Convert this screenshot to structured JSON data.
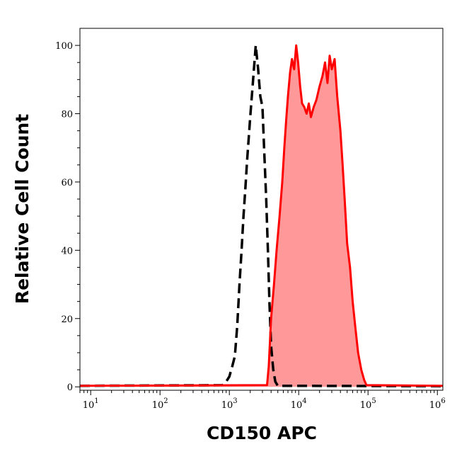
{
  "chart_data": {
    "type": "area",
    "title": "",
    "xlabel": "CD150 APC",
    "ylabel": "Relative Cell Count",
    "x_scale": "log",
    "xlim": [
      7,
      1200000
    ],
    "ylim": [
      -1,
      105
    ],
    "x_ticks": [
      {
        "base": "10",
        "exp": "1",
        "value": 10
      },
      {
        "base": "10",
        "exp": "2",
        "value": 100
      },
      {
        "base": "10",
        "exp": "3",
        "value": 1000
      },
      {
        "base": "10",
        "exp": "4",
        "value": 10000
      },
      {
        "base": "10",
        "exp": "5",
        "value": 100000
      },
      {
        "base": "10",
        "exp": "6",
        "value": 1000000
      }
    ],
    "y_ticks": [
      "0",
      "20",
      "40",
      "60",
      "80",
      "100"
    ],
    "grid": false,
    "legend": "none",
    "series": [
      {
        "style": "dashed",
        "color": "#000000",
        "fill": "none",
        "points": [
          [
            7,
            0.3
          ],
          [
            800,
            0.5
          ],
          [
            900,
            1.5
          ],
          [
            1000,
            3
          ],
          [
            1100,
            6
          ],
          [
            1200,
            9
          ],
          [
            1300,
            18
          ],
          [
            1400,
            30
          ],
          [
            1500,
            40
          ],
          [
            1600,
            50
          ],
          [
            1700,
            58
          ],
          [
            1800,
            66
          ],
          [
            2000,
            79
          ],
          [
            2200,
            90
          ],
          [
            2400,
            100
          ],
          [
            2600,
            93
          ],
          [
            2800,
            85
          ],
          [
            3000,
            82
          ],
          [
            3200,
            68
          ],
          [
            3400,
            55
          ],
          [
            3600,
            40
          ],
          [
            3800,
            24
          ],
          [
            4000,
            12
          ],
          [
            4300,
            5
          ],
          [
            4600,
            1.5
          ],
          [
            5000,
            0.3
          ],
          [
            1200000,
            0.2
          ]
        ]
      },
      {
        "style": "solid",
        "color": "#ff0000",
        "fill": "#ff9999",
        "points": [
          [
            7,
            0.3
          ],
          [
            3500,
            0.5
          ],
          [
            3700,
            6
          ],
          [
            4000,
            20
          ],
          [
            4400,
            30
          ],
          [
            4800,
            40
          ],
          [
            5300,
            50
          ],
          [
            5800,
            60
          ],
          [
            6200,
            70
          ],
          [
            6600,
            78
          ],
          [
            7000,
            85
          ],
          [
            7500,
            92
          ],
          [
            8000,
            96
          ],
          [
            8600,
            93
          ],
          [
            9200,
            100
          ],
          [
            9800,
            95
          ],
          [
            10500,
            88
          ],
          [
            11200,
            83
          ],
          [
            12000,
            82
          ],
          [
            13000,
            80
          ],
          [
            14000,
            83
          ],
          [
            15000,
            79
          ],
          [
            16500,
            82
          ],
          [
            18000,
            84
          ],
          [
            20000,
            88
          ],
          [
            22000,
            91
          ],
          [
            24000,
            95
          ],
          [
            26000,
            89
          ],
          [
            28000,
            97
          ],
          [
            30000,
            93
          ],
          [
            33000,
            96
          ],
          [
            36000,
            85
          ],
          [
            40000,
            75
          ],
          [
            43000,
            65
          ],
          [
            46000,
            55
          ],
          [
            50000,
            42
          ],
          [
            55000,
            35
          ],
          [
            60000,
            25
          ],
          [
            66000,
            17
          ],
          [
            72000,
            10
          ],
          [
            80000,
            5
          ],
          [
            88000,
            2
          ],
          [
            95000,
            0.5
          ],
          [
            1200000,
            0.3
          ]
        ]
      }
    ]
  }
}
